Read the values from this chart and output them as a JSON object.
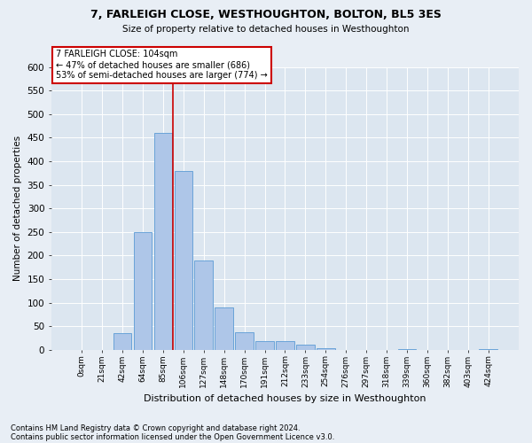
{
  "title1": "7, FARLEIGH CLOSE, WESTHOUGHTON, BOLTON, BL5 3ES",
  "title2": "Size of property relative to detached houses in Westhoughton",
  "xlabel": "Distribution of detached houses by size in Westhoughton",
  "ylabel": "Number of detached properties",
  "footnote1": "Contains HM Land Registry data © Crown copyright and database right 2024.",
  "footnote2": "Contains public sector information licensed under the Open Government Licence v3.0.",
  "bin_labels": [
    "0sqm",
    "21sqm",
    "42sqm",
    "64sqm",
    "85sqm",
    "106sqm",
    "127sqm",
    "148sqm",
    "170sqm",
    "191sqm",
    "212sqm",
    "233sqm",
    "254sqm",
    "276sqm",
    "297sqm",
    "318sqm",
    "339sqm",
    "360sqm",
    "382sqm",
    "403sqm",
    "424sqm"
  ],
  "bar_values": [
    0,
    0,
    35,
    250,
    460,
    380,
    190,
    90,
    37,
    18,
    18,
    10,
    3,
    0,
    0,
    0,
    2,
    0,
    0,
    0,
    2
  ],
  "bar_color": "#aec6e8",
  "bar_edge_color": "#5b9bd5",
  "vline_color": "#cc0000",
  "ylim": [
    0,
    600
  ],
  "yticks": [
    0,
    50,
    100,
    150,
    200,
    250,
    300,
    350,
    400,
    450,
    500,
    550,
    600
  ],
  "annotation_title": "7 FARLEIGH CLOSE: 104sqm",
  "annotation_line1": "← 47% of detached houses are smaller (686)",
  "annotation_line2": "53% of semi-detached houses are larger (774) →",
  "annotation_box_color": "#cc0000",
  "bg_color": "#e8eef5",
  "plot_bg_color": "#dce6f0"
}
